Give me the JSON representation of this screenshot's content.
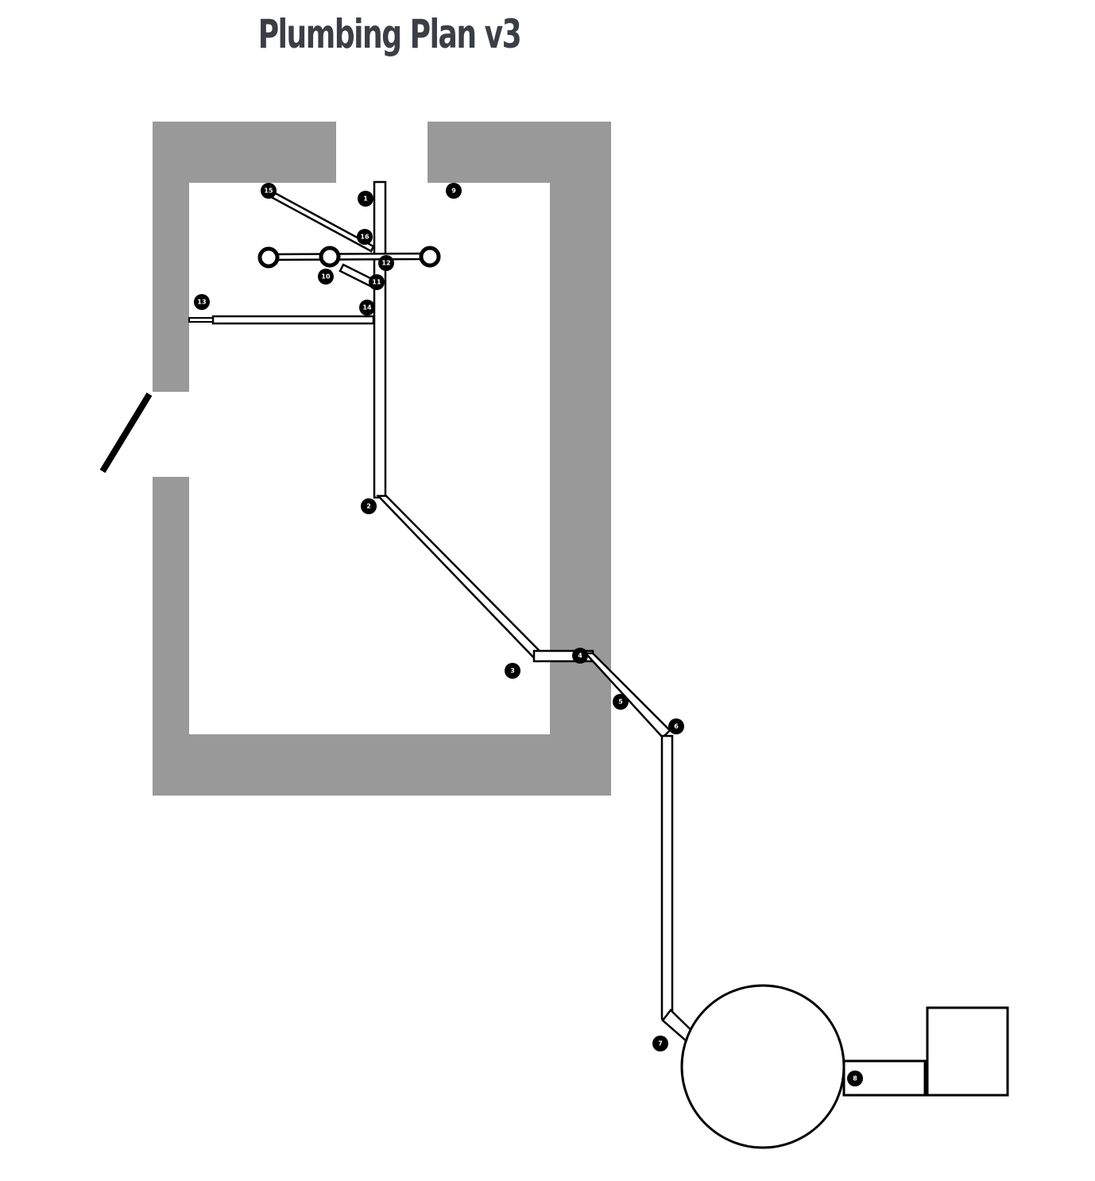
{
  "title": "Plumbing Plan v3",
  "colors": {
    "wall": "#999999",
    "pipe_stroke": "#000000",
    "pipe_fill": "#ffffff",
    "marker": "#000000",
    "marker_text": "#ffffff",
    "title": "#3b3e44"
  },
  "markers": [
    "1",
    "2",
    "3",
    "4",
    "5",
    "6",
    "7",
    "8",
    "9",
    "10",
    "11",
    "12",
    "13",
    "14",
    "15",
    "16"
  ]
}
